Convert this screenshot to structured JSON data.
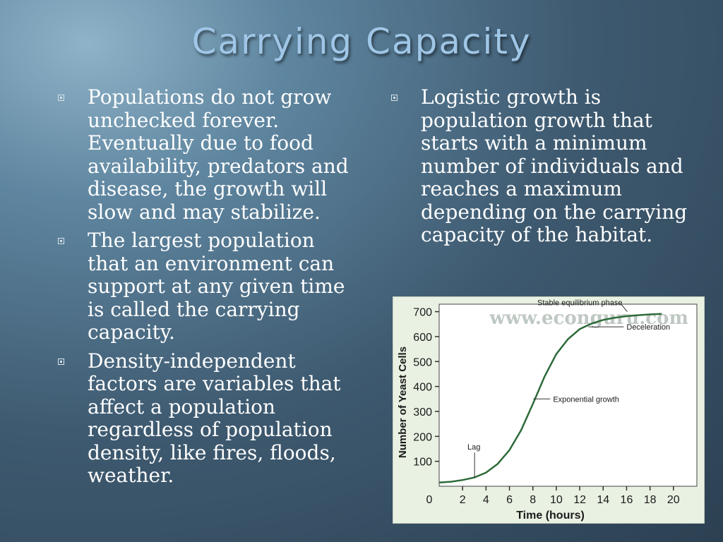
{
  "slide": {
    "title": "Carrying Capacity",
    "left_bullets": [
      "Populations do not grow unchecked forever.  Eventually due to food availability, predators and disease, the growth will slow and may stabilize.",
      "The largest population that an environment can support at any given time is called the carrying capacity.",
      "Density-independent factors are variables that affect a population regardless of population density, like fires, floods, weather."
    ],
    "right_bullets": [
      "Logistic growth is population growth that starts with a minimum number of individuals and reaches a maximum depending on the carrying capacity of the habitat."
    ]
  },
  "chart_data": {
    "type": "line",
    "watermark": "www.econguru.com",
    "xlabel": "Time (hours)",
    "ylabel": "Number of Yeast Cells",
    "xlim": [
      0,
      22
    ],
    "ylim": [
      0,
      730
    ],
    "x_ticks": [
      "2",
      "4",
      "6",
      "8",
      "10",
      "12",
      "14",
      "16",
      "18",
      "20"
    ],
    "y_ticks": [
      "100",
      "200",
      "300",
      "400",
      "500",
      "600",
      "700"
    ],
    "origin_label": "0",
    "series": [
      {
        "x": [
          0,
          1,
          2,
          3,
          4,
          5,
          6,
          7,
          8,
          9,
          10,
          11,
          12,
          13,
          14,
          15,
          16,
          17,
          18,
          19
        ],
        "y": [
          15,
          18,
          25,
          35,
          55,
          90,
          145,
          225,
          330,
          440,
          530,
          590,
          630,
          652,
          667,
          676,
          682,
          686,
          689,
          691
        ]
      }
    ],
    "annotations": [
      {
        "text": "Stable equilibrium phase",
        "x": 16,
        "y": 680
      },
      {
        "text": "Deceleration",
        "x": 12.5,
        "y": 605
      },
      {
        "text": "Exponential growth",
        "x": 9,
        "y": 350
      },
      {
        "text": "Lag",
        "x": 2.6,
        "y": 22
      }
    ],
    "line_color": "#2e6b3a"
  }
}
